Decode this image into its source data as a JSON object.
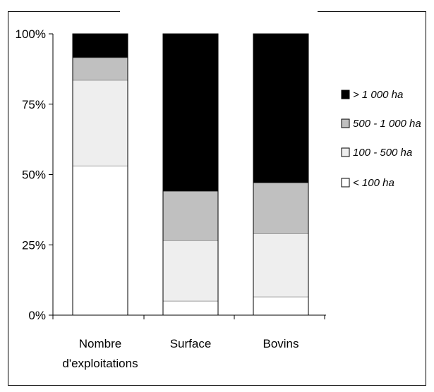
{
  "chart_data": {
    "type": "bar",
    "stacked": true,
    "normalized": true,
    "title": "",
    "xlabel": "",
    "ylabel": "",
    "ylim": [
      0,
      100
    ],
    "y_ticks": [
      "0%",
      "25%",
      "50%",
      "75%",
      "100%"
    ],
    "y_tick_values": [
      0,
      25,
      50,
      75,
      100
    ],
    "categories": [
      [
        "Nombre",
        "d'exploitations"
      ],
      [
        "Surface"
      ],
      [
        "Bovins"
      ]
    ],
    "series": [
      {
        "name": "< 100 ha",
        "color": "#ffffff",
        "values": [
          53,
          5,
          6.5
        ]
      },
      {
        "name": "100 - 500 ha",
        "color": "#eeeeee",
        "values": [
          30.5,
          21.5,
          22.5
        ]
      },
      {
        "name": "500 - 1 000 ha",
        "color": "#c0c0c0",
        "values": [
          8,
          17.5,
          18
        ]
      },
      {
        "name": "> 1 000 ha",
        "color": "#000000",
        "values": [
          8.5,
          56,
          53
        ]
      }
    ],
    "legend": {
      "placement": "right",
      "order": [
        "> 1 000 ha",
        "500 - 1 000 ha",
        "100 - 500 ha",
        "< 100 ha"
      ]
    },
    "grid": false
  }
}
